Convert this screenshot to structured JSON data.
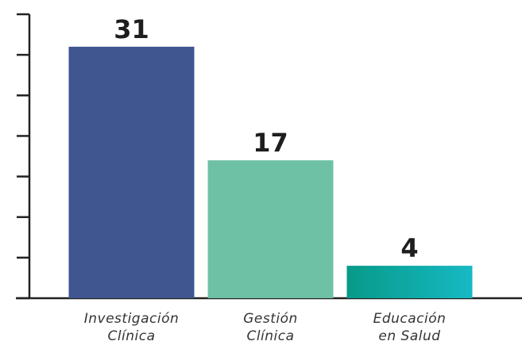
{
  "chart_data": {
    "type": "bar",
    "categories": [
      [
        "Investigación",
        "Clínica"
      ],
      [
        "Gestión",
        "Clínica"
      ],
      [
        "Educación",
        "en Salud"
      ]
    ],
    "values": [
      31,
      17,
      4
    ],
    "colors": [
      "#3f5690",
      "#6fc1a5",
      [
        "#079a88",
        "#17b9c4"
      ]
    ],
    "ylim": [
      0,
      35
    ],
    "yticks": [
      0,
      5,
      10,
      15,
      20,
      25,
      30,
      35
    ]
  }
}
